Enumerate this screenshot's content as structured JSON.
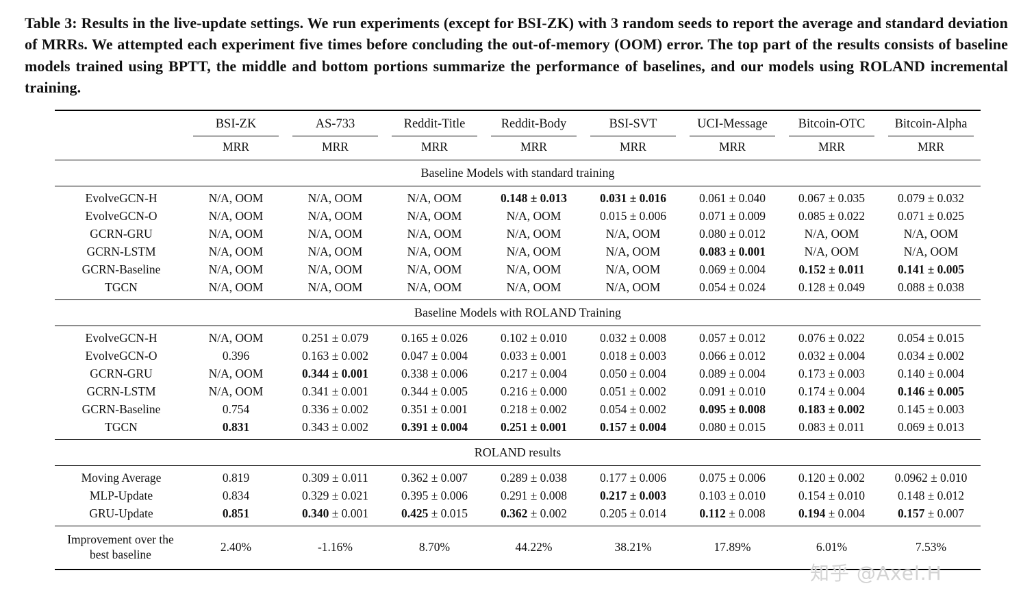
{
  "caption": "Table 3: Results in the live-update settings. We run experiments (except for BSI-ZK) with 3 random seeds to report the average and standard deviation of MRRs. We attempted each experiment five times before concluding the out-of-memory (OOM) error. The top part of the results consists of baseline models trained using BPTT, the middle and bottom portions summarize the performance of baselines, and our models using ROLAND incremental training.",
  "table": {
    "columns": [
      "BSI-ZK",
      "AS-733",
      "Reddit-Title",
      "Reddit-Body",
      "BSI-SVT",
      "UCI-Message",
      "Bitcoin-OTC",
      "Bitcoin-Alpha"
    ],
    "metric": "MRR",
    "sections": [
      {
        "title": "Baseline Models with standard training",
        "rows": [
          {
            "label": "EvolveGCN-H",
            "cells": [
              "N/A, OOM",
              "N/A, OOM",
              "N/A, OOM",
              "**0.148 ± 0.013**",
              "**0.031 ± 0.016**",
              "0.061 ± 0.040",
              "0.067 ± 0.035",
              "0.079 ± 0.032"
            ]
          },
          {
            "label": "EvolveGCN-O",
            "cells": [
              "N/A, OOM",
              "N/A, OOM",
              "N/A, OOM",
              "N/A, OOM",
              "0.015 ± 0.006",
              "0.071 ± 0.009",
              "0.085 ± 0.022",
              "0.071 ± 0.025"
            ]
          },
          {
            "label": "GCRN-GRU",
            "cells": [
              "N/A, OOM",
              "N/A, OOM",
              "N/A, OOM",
              "N/A, OOM",
              "N/A, OOM",
              "0.080 ± 0.012",
              "N/A, OOM",
              "N/A, OOM"
            ]
          },
          {
            "label": "GCRN-LSTM",
            "cells": [
              "N/A, OOM",
              "N/A, OOM",
              "N/A, OOM",
              "N/A, OOM",
              "N/A, OOM",
              "**0.083 ± 0.001**",
              "N/A, OOM",
              "N/A, OOM"
            ]
          },
          {
            "label": "GCRN-Baseline",
            "cells": [
              "N/A, OOM",
              "N/A, OOM",
              "N/A, OOM",
              "N/A, OOM",
              "N/A, OOM",
              "0.069 ± 0.004",
              "**0.152 ± 0.011**",
              "**0.141 ± 0.005**"
            ]
          },
          {
            "label": "TGCN",
            "cells": [
              "N/A, OOM",
              "N/A, OOM",
              "N/A, OOM",
              "N/A, OOM",
              "N/A, OOM",
              "0.054 ± 0.024",
              "0.128 ± 0.049",
              "0.088 ± 0.038"
            ]
          }
        ]
      },
      {
        "title": "Baseline Models with ROLAND Training",
        "rows": [
          {
            "label": "EvolveGCN-H",
            "cells": [
              "N/A, OOM",
              "0.251 ± 0.079",
              "0.165 ± 0.026",
              "0.102 ± 0.010",
              "0.032 ± 0.008",
              "0.057 ± 0.012",
              "0.076 ± 0.022",
              "0.054 ± 0.015"
            ]
          },
          {
            "label": "EvolveGCN-O",
            "cells": [
              "0.396",
              "0.163 ± 0.002",
              "0.047 ± 0.004",
              "0.033 ± 0.001",
              "0.018 ± 0.003",
              "0.066 ± 0.012",
              "0.032 ± 0.004",
              "0.034 ± 0.002"
            ]
          },
          {
            "label": "GCRN-GRU",
            "cells": [
              "N/A, OOM",
              "**0.344 ± 0.001**",
              "0.338 ± 0.006",
              "0.217 ± 0.004",
              "0.050 ± 0.004",
              "0.089 ± 0.004",
              "0.173 ± 0.003",
              "0.140 ± 0.004"
            ]
          },
          {
            "label": "GCRN-LSTM",
            "cells": [
              "N/A, OOM",
              "0.341 ± 0.001",
              "0.344 ± 0.005",
              "0.216 ± 0.000",
              "0.051 ± 0.002",
              "0.091 ± 0.010",
              "0.174 ± 0.004",
              "**0.146 ± 0.005**"
            ]
          },
          {
            "label": "GCRN-Baseline",
            "cells": [
              "0.754",
              "0.336 ± 0.002",
              "0.351 ± 0.001",
              "0.218 ± 0.002",
              "0.054 ± 0.002",
              "**0.095 ± 0.008**",
              "**0.183 ± 0.002**",
              "0.145 ± 0.003"
            ]
          },
          {
            "label": "TGCN",
            "cells": [
              "**0.831**",
              "0.343 ± 0.002",
              "**0.391 ± 0.004**",
              "**0.251 ± 0.001**",
              "**0.157 ± 0.004**",
              "0.080 ± 0.015",
              "0.083 ± 0.011",
              "0.069 ± 0.013"
            ]
          }
        ]
      },
      {
        "title": "ROLAND results",
        "rows": [
          {
            "label": "Moving Average",
            "cells": [
              "0.819",
              "0.309 ± 0.011",
              "0.362 ± 0.007",
              "0.289 ± 0.038",
              "0.177 ± 0.006",
              "0.075 ± 0.006",
              "0.120 ± 0.002",
              "0.0962 ± 0.010"
            ]
          },
          {
            "label": "MLP-Update",
            "cells": [
              "0.834",
              "0.329 ± 0.021",
              "0.395 ± 0.006",
              "0.291 ± 0.008",
              "**0.217 ± 0.003**",
              "0.103 ± 0.010",
              "0.154 ± 0.010",
              "0.148 ± 0.012"
            ]
          },
          {
            "label": "GRU-Update",
            "cells": [
              "**0.851**",
              "**0.340** ± 0.001",
              "**0.425** ± 0.015",
              "**0.362** ± 0.002",
              "0.205 ± 0.014",
              "**0.112** ± 0.008",
              "**0.194** ± 0.004",
              "**0.157** ± 0.007"
            ]
          }
        ]
      }
    ],
    "footer": {
      "label": "Improvement over the best baseline",
      "cells": [
        "2.40%",
        "-1.16%",
        "8.70%",
        "44.22%",
        "38.21%",
        "17.89%",
        "6.01%",
        "7.53%"
      ]
    }
  },
  "watermark": "知乎 @Axel.H",
  "colors": {
    "background": "#ffffff",
    "text": "#111111",
    "rule": "#000000",
    "watermark": "#d3d3d3"
  }
}
